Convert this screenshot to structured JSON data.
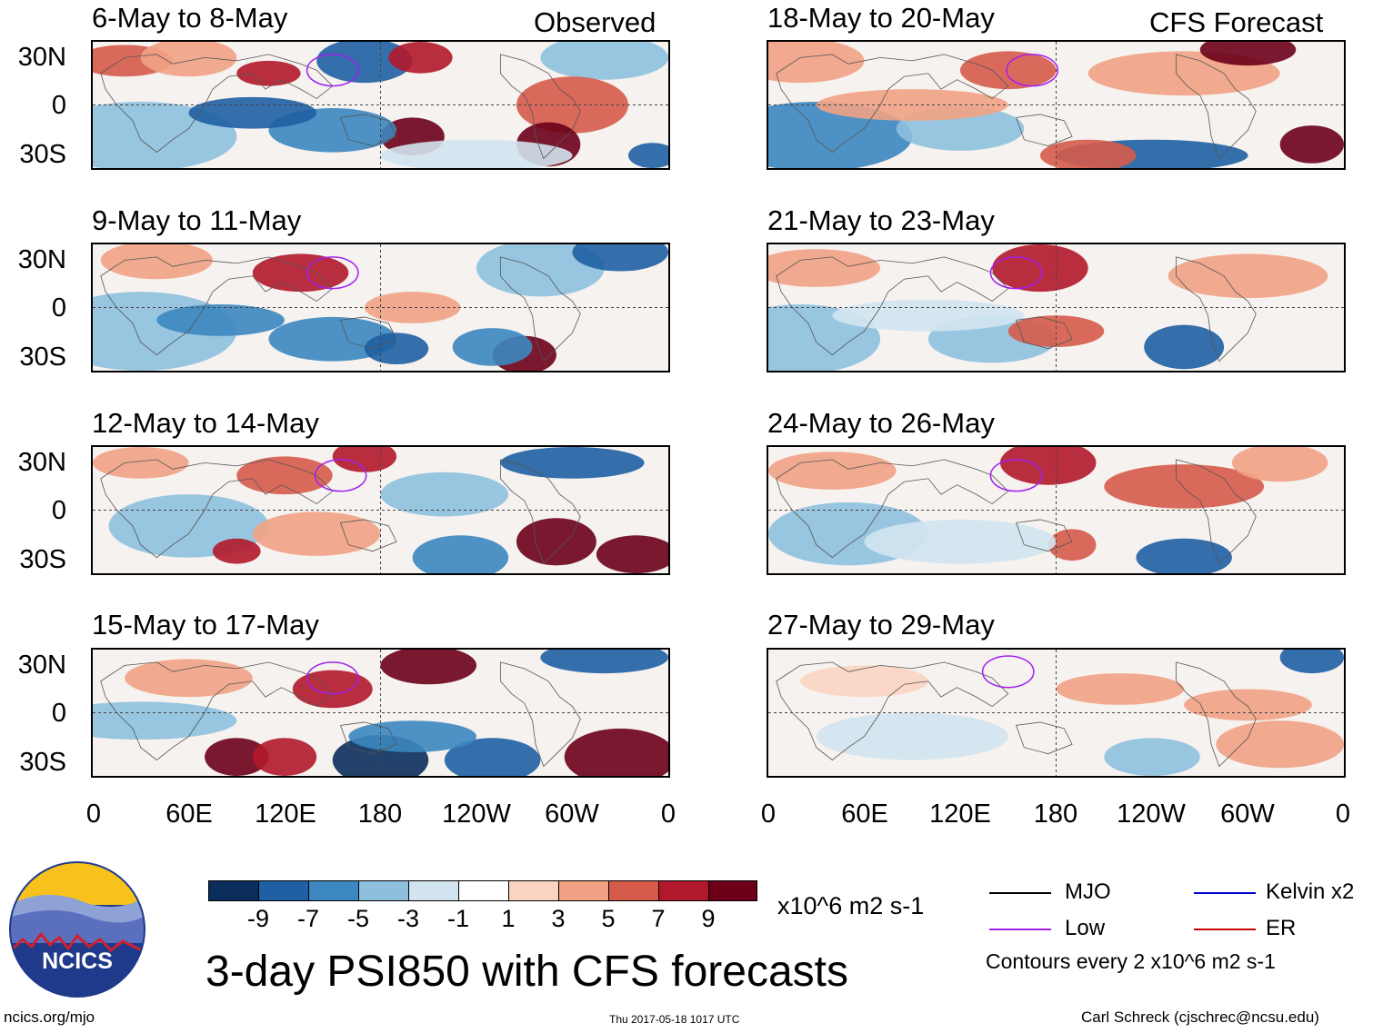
{
  "header": {
    "observed_label": "Observed",
    "forecast_label": "CFS Forecast"
  },
  "panels": [
    {
      "title": "6-May to 8-May"
    },
    {
      "title": "9-May to 11-May"
    },
    {
      "title": "12-May to 14-May"
    },
    {
      "title": "15-May to 17-May"
    },
    {
      "title": "18-May to 20-May"
    },
    {
      "title": "21-May to 23-May"
    },
    {
      "title": "24-May to 26-May"
    },
    {
      "title": "27-May to 29-May"
    }
  ],
  "axes": {
    "lat_labels": [
      "30N",
      "0",
      "30S"
    ],
    "lon_labels": [
      "0",
      "60E",
      "120E",
      "180",
      "120W",
      "60W",
      "0"
    ]
  },
  "colorbar": {
    "ticks": [
      "-9",
      "-7",
      "-5",
      "-3",
      "-1",
      "1",
      "3",
      "5",
      "7",
      "9"
    ],
    "units": "x10^6 m2 s-1",
    "colors": [
      "#0b2d5c",
      "#1f5fa3",
      "#3c87c0",
      "#8ec0de",
      "#d2e4f0",
      "#ffffff",
      "#fbd4c1",
      "#f1a284",
      "#d65b4a",
      "#b2182b",
      "#6b0018"
    ]
  },
  "title": "3-day PSI850 with CFS forecasts",
  "legend": {
    "mjo": "MJO",
    "low": "Low",
    "kelvin": "Kelvin x2",
    "er": "ER",
    "contours": "Contours every 2 x10^6 m2 s-1",
    "colors": {
      "mjo": "#000000",
      "low": "#a020f0",
      "kelvin": "#0000cc",
      "er": "#cc0000"
    }
  },
  "logo": {
    "text": "NCICS"
  },
  "footer": {
    "url": "ncics.org/mjo",
    "timestamp": "Thu 2017-05-18 1017 UTC",
    "credit": "Carl Schreck (cjschrec@ncsu.edu)"
  }
}
